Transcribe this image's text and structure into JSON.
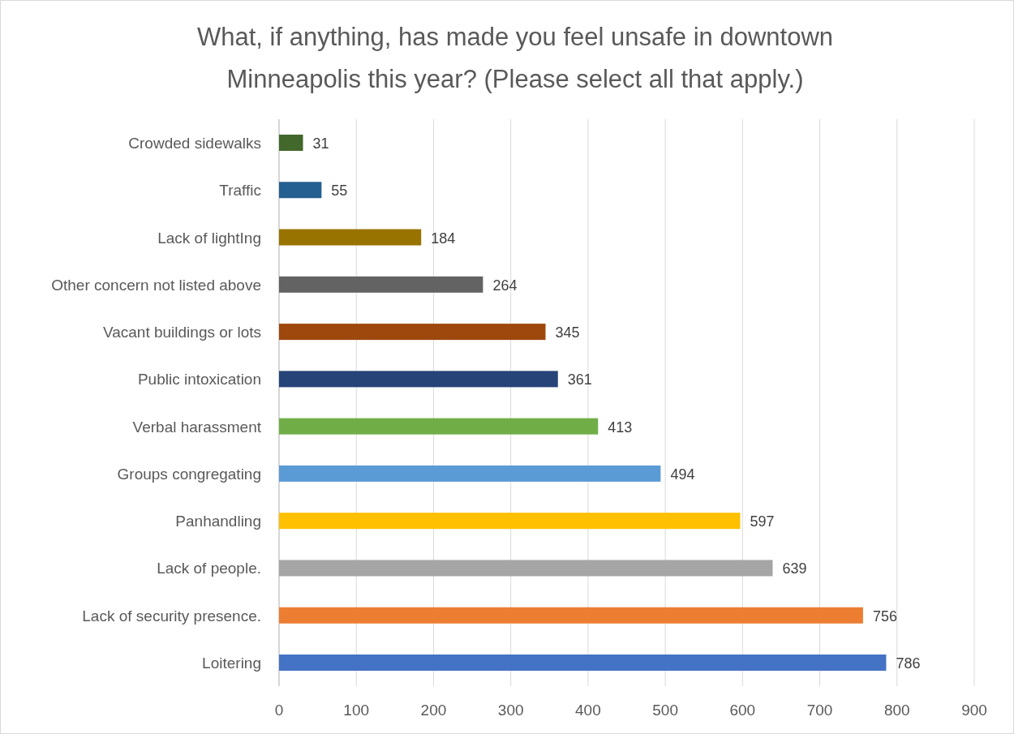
{
  "chart_data": {
    "type": "bar",
    "orientation": "horizontal",
    "title": "What, if anything, has made you feel unsafe in downtown Minneapolis this year? (Please select all that apply.)",
    "categories": [
      "Crowded sidewalks",
      "Traffic",
      "Lack of lightIng",
      "Other concern not listed above",
      "Vacant buildings or lots",
      "Public intoxication",
      "Verbal harassment",
      "Groups congregating",
      "Panhandling",
      "Lack of people.",
      "Lack of security presence.",
      "Loitering"
    ],
    "values": [
      31,
      55,
      184,
      264,
      345,
      361,
      413,
      494,
      597,
      639,
      756,
      786
    ],
    "colors": [
      "#43682b",
      "#255e91",
      "#997300",
      "#636363",
      "#9e480e",
      "#264478",
      "#70ad47",
      "#5b9bd5",
      "#ffc000",
      "#a5a5a5",
      "#ed7d31",
      "#4472c4"
    ],
    "xlim": [
      0,
      900
    ],
    "xticks": [
      0,
      100,
      200,
      300,
      400,
      500,
      600,
      700,
      800,
      900
    ],
    "grid": "x",
    "data_labels": true
  }
}
